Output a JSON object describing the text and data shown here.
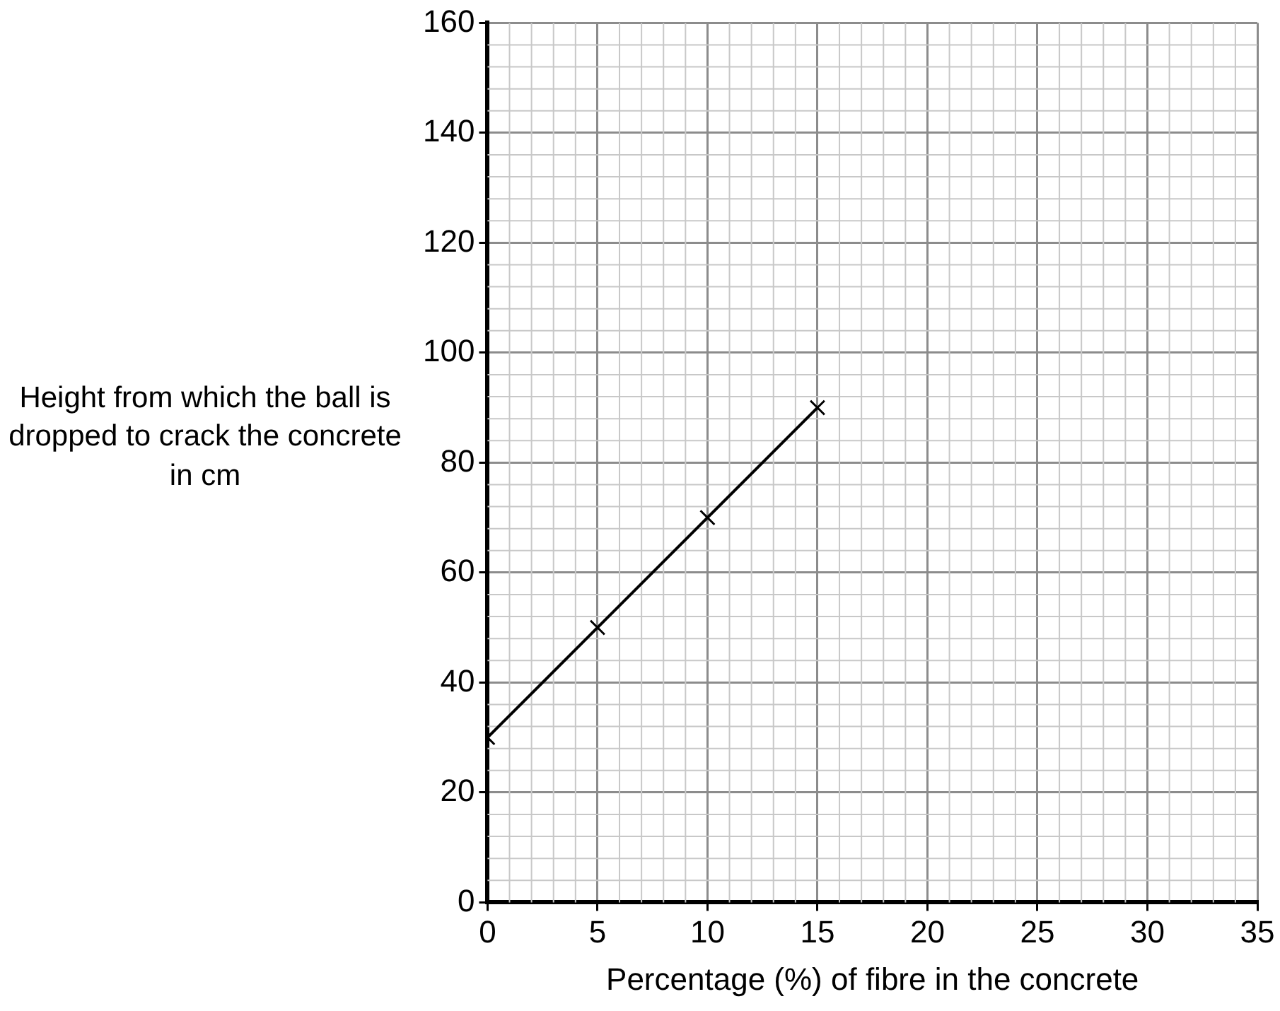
{
  "chart_data": {
    "type": "line",
    "xlabel": "Percentage (%) of fibre in the concrete",
    "ylabel": "Height from which the ball is dropped to crack the concrete in cm",
    "x": [
      0,
      5,
      10,
      15
    ],
    "series": [
      {
        "color": "#000000",
        "values": [
          30,
          50,
          70,
          90
        ]
      }
    ],
    "xlim": [
      0,
      35
    ],
    "xticks": [
      0,
      5,
      10,
      15,
      20,
      25,
      30,
      35
    ],
    "ylim": [
      0,
      160
    ],
    "yticks": [
      0,
      20,
      40,
      60,
      80,
      100,
      120,
      140,
      160
    ],
    "grid": true,
    "legend": false,
    "marker": "cross",
    "line_style": "solid"
  }
}
